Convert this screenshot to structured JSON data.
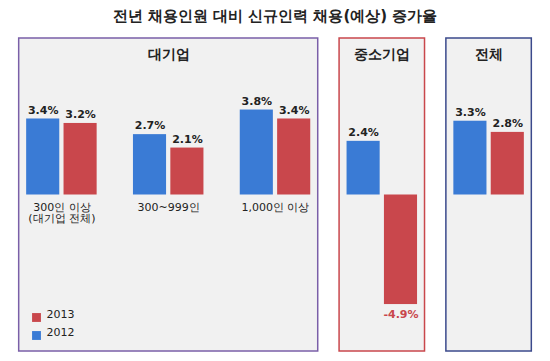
{
  "chart_data": {
    "type": "bar",
    "title": "전년 채용인원 대비 신규인력 채용(예상) 증가율",
    "categories": [
      "300인 이상\n(대기업 전체)",
      "300~999인",
      "1,000인 이상",
      null,
      null
    ],
    "panels": [
      "대기업",
      "대기업",
      "대기업",
      "중소기업",
      "전체"
    ],
    "series": [
      {
        "name": "2012",
        "color": "#3a7bd5",
        "values": [
          3.4,
          2.7,
          3.8,
          2.4,
          3.3
        ],
        "value_labels": [
          "3.4%",
          "2.7%",
          "3.8%",
          "2.4%",
          "3.3%"
        ]
      },
      {
        "name": "2013",
        "color": "#c9474c",
        "values": [
          3.2,
          2.1,
          3.4,
          -4.9,
          2.8
        ],
        "value_labels": [
          "3.2%",
          "2.1%",
          "3.4%",
          "-4.9%",
          "2.8%"
        ]
      }
    ],
    "ylim": [
      -7,
      7
    ],
    "data_labels": true,
    "tick_labels": "x",
    "legend": "bottom-left"
  }
}
